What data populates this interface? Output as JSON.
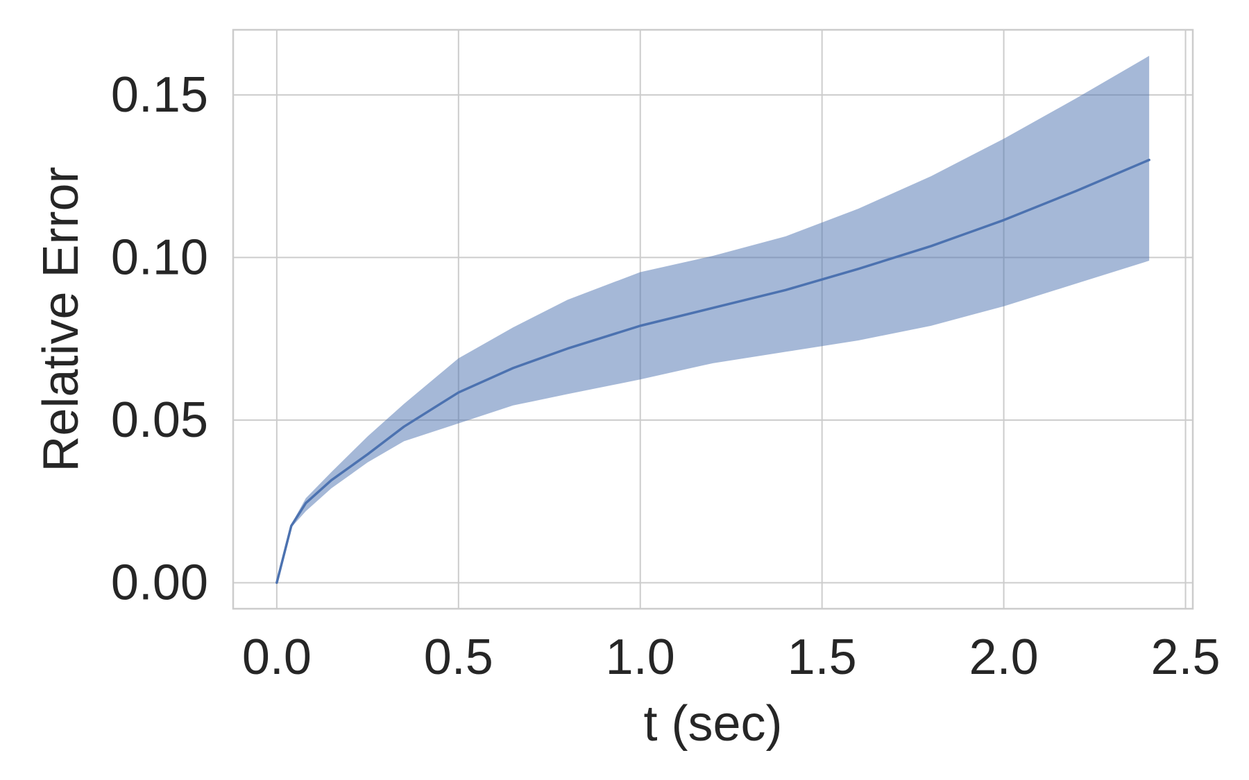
{
  "chart_data": {
    "type": "line",
    "xlabel": "t (sec)",
    "ylabel": "Relative Error",
    "xlim": [
      -0.12,
      2.52
    ],
    "ylim": [
      -0.008,
      0.17
    ],
    "x_ticks": [
      0.0,
      0.5,
      1.0,
      1.5,
      2.0,
      2.5
    ],
    "x_tick_labels": [
      "0.0",
      "0.5",
      "1.0",
      "1.5",
      "2.0",
      "2.5"
    ],
    "y_ticks": [
      0.0,
      0.05,
      0.1,
      0.15
    ],
    "y_tick_labels": [
      "0.00",
      "0.05",
      "0.10",
      "0.15"
    ],
    "grid": true,
    "background_color": "#ffffff",
    "grid_color": "#cccccc",
    "spine_color": "#cccccc",
    "text_color": "#262626",
    "series": [
      {
        "color": "#4c72b0",
        "band_color": "#4c72b0",
        "band_opacity": 0.5,
        "x": [
          0.0,
          0.04,
          0.08,
          0.15,
          0.25,
          0.35,
          0.5,
          0.65,
          0.8,
          1.0,
          1.2,
          1.4,
          1.6,
          1.8,
          2.0,
          2.2,
          2.4
        ],
        "mean": [
          0.0,
          0.0175,
          0.0245,
          0.0315,
          0.0395,
          0.048,
          0.0585,
          0.066,
          0.072,
          0.079,
          0.0845,
          0.09,
          0.0965,
          0.1035,
          0.1115,
          0.1205,
          0.13
        ],
        "lower": [
          0.0,
          0.017,
          0.022,
          0.029,
          0.037,
          0.0435,
          0.049,
          0.0545,
          0.058,
          0.0625,
          0.0675,
          0.071,
          0.0745,
          0.079,
          0.085,
          0.092,
          0.099
        ],
        "upper": [
          0.0,
          0.018,
          0.026,
          0.034,
          0.045,
          0.055,
          0.069,
          0.0785,
          0.087,
          0.0955,
          0.1005,
          0.1065,
          0.115,
          0.125,
          0.1365,
          0.149,
          0.162
        ]
      }
    ]
  }
}
